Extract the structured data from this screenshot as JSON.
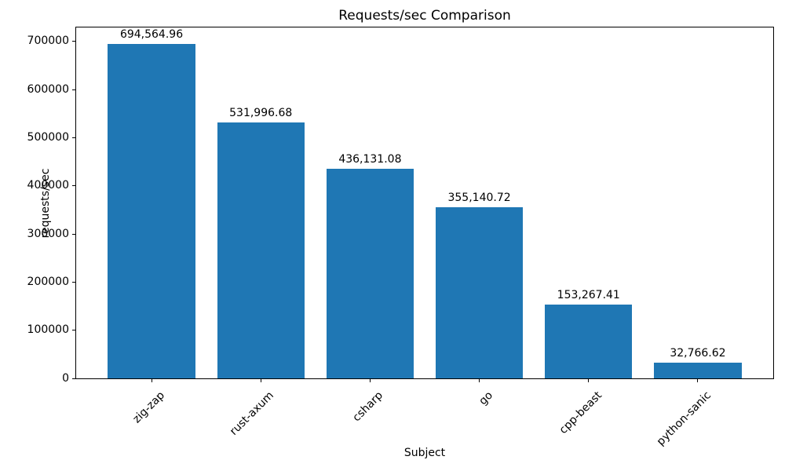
{
  "chart_data": {
    "type": "bar",
    "title": "Requests/sec Comparison",
    "xlabel": "Subject",
    "ylabel": "requests/sec",
    "categories": [
      "zig-zap",
      "rust-axum",
      "csharp",
      "go",
      "cpp-beast",
      "python-sanic"
    ],
    "values": [
      694564.96,
      531996.68,
      436131.08,
      355140.72,
      153267.41,
      32766.62
    ],
    "value_labels": [
      "694,564.96",
      "531,996.68",
      "436,131.08",
      "355,140.72",
      "153,267.41",
      "32,766.62"
    ],
    "ylim": [
      0,
      729293
    ],
    "yticks": [
      0,
      100000,
      200000,
      300000,
      400000,
      500000,
      600000,
      700000
    ],
    "xtick_rotation_deg": 45,
    "bar_color": "#1f77b4",
    "axis_color": "#000000",
    "text_color": "#000000",
    "background_color": "#ffffff",
    "grid": false
  }
}
